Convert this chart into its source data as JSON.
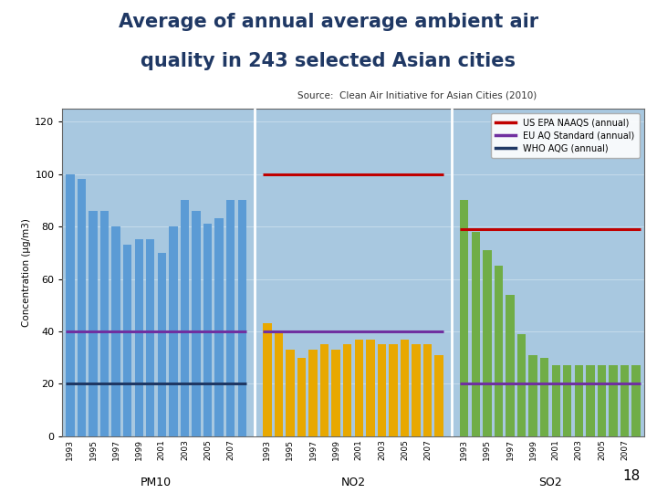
{
  "title_line1": "Average of annual average ambient air",
  "title_line2": "quality in 243 selected Asian cities",
  "source": "Source:  Clean Air Initiative for Asian Cities (2010)",
  "ylabel": "Concentration (μg/m3)",
  "ylim": [
    0,
    125
  ],
  "yticks": [
    0,
    20,
    40,
    60,
    80,
    100,
    120
  ],
  "years": [
    "1993",
    "1995",
    "1997",
    "1999",
    "2001",
    "2003",
    "2005",
    "2007"
  ],
  "pm10_values": [
    100,
    98,
    86,
    86,
    80,
    73,
    75,
    75,
    70,
    80,
    90,
    86,
    81,
    83,
    90,
    90
  ],
  "no2_values": [
    43,
    40,
    33,
    30,
    33,
    35,
    33,
    35,
    37,
    37,
    35,
    35,
    37,
    35,
    35,
    31
  ],
  "so2_values": [
    90,
    78,
    71,
    65,
    54,
    39,
    31,
    30,
    27,
    27,
    27,
    27,
    27,
    27,
    27,
    27
  ],
  "pm10_color": "#5B9BD5",
  "no2_color": "#E8A800",
  "so2_color": "#70AD47",
  "pm10_eu": 40,
  "pm10_who": 20,
  "no2_epa": 100,
  "no2_eu": 40,
  "so2_epa": 79,
  "so2_eu": 20,
  "epa_color": "#C00000",
  "eu_color": "#7030A0",
  "who_color": "#1F3864",
  "axis_bg": "#A8C8E0",
  "page_number": "18",
  "title_color": "#1F3864",
  "legend_labels": [
    "US EPA NAAQS (annual)",
    "EU AQ Standard (annual)",
    "WHO AQG (annual)"
  ]
}
